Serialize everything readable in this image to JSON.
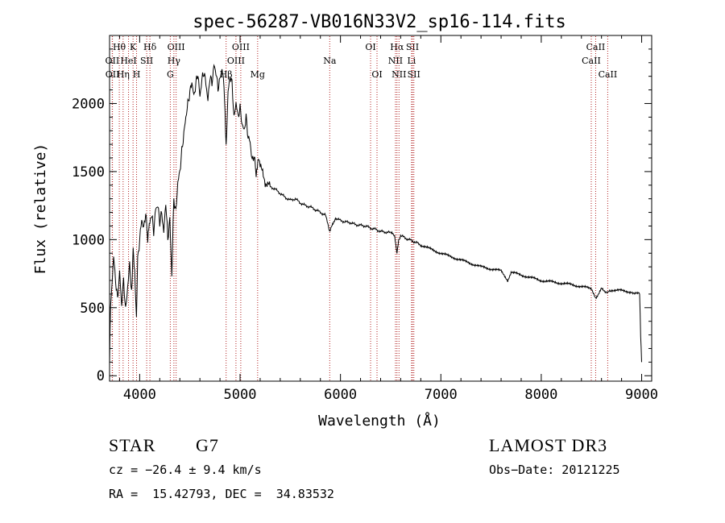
{
  "chart_data": {
    "type": "line",
    "title": "spec-56287-VB016N33V2_sp16-114.fits",
    "xlabel": "Wavelength (Å)",
    "ylabel": "Flux (relative)",
    "xlim": [
      3700,
      9100
    ],
    "ylim": [
      -40,
      2500
    ],
    "x_ticks": [
      4000,
      5000,
      6000,
      7000,
      8000,
      9000
    ],
    "x_tick_labels": [
      "4000",
      "5000",
      "6000",
      "7000",
      "8000",
      "9000"
    ],
    "y_ticks": [
      0,
      500,
      1000,
      1500,
      2000
    ],
    "y_tick_labels": [
      "0",
      "500",
      "1000",
      "1500",
      "2000"
    ],
    "series": [
      {
        "name": "spectrum",
        "color": "#000000",
        "x": [
          3700,
          3710,
          3720,
          3740,
          3760,
          3780,
          3800,
          3820,
          3840,
          3860,
          3880,
          3900,
          3920,
          3935,
          3950,
          3968,
          3980,
          4000,
          4020,
          4040,
          4060,
          4080,
          4101,
          4120,
          4140,
          4160,
          4180,
          4200,
          4220,
          4240,
          4260,
          4280,
          4300,
          4320,
          4340,
          4360,
          4380,
          4400,
          4420,
          4440,
          4460,
          4480,
          4500,
          4520,
          4540,
          4560,
          4580,
          4600,
          4620,
          4640,
          4660,
          4680,
          4700,
          4720,
          4740,
          4760,
          4780,
          4800,
          4820,
          4840,
          4861,
          4880,
          4900,
          4920,
          4940,
          4960,
          4980,
          5000,
          5020,
          5040,
          5060,
          5080,
          5100,
          5120,
          5140,
          5160,
          5183,
          5200,
          5250,
          5300,
          5350,
          5400,
          5450,
          5500,
          5550,
          5600,
          5650,
          5700,
          5750,
          5800,
          5850,
          5893,
          5950,
          6000,
          6050,
          6100,
          6150,
          6200,
          6250,
          6300,
          6350,
          6400,
          6450,
          6500,
          6540,
          6563,
          6580,
          6600,
          6650,
          6700,
          6750,
          6800,
          6900,
          7000,
          7100,
          7200,
          7300,
          7400,
          7500,
          7600,
          7665,
          7700,
          7800,
          7900,
          8000,
          8100,
          8200,
          8300,
          8400,
          8500,
          8542,
          8600,
          8662,
          8700,
          8800,
          8900,
          8980,
          8990,
          9000
        ],
        "values": [
          100,
          520,
          620,
          880,
          700,
          560,
          760,
          520,
          700,
          480,
          650,
          820,
          600,
          940,
          750,
          400,
          850,
          1000,
          1150,
          1080,
          1200,
          1000,
          1150,
          1180,
          1060,
          1230,
          1250,
          1130,
          1200,
          1050,
          1280,
          1000,
          1150,
          740,
          1300,
          1200,
          1420,
          1500,
          1650,
          1780,
          1900,
          2000,
          2080,
          2160,
          2050,
          2150,
          2220,
          2050,
          2180,
          2230,
          2150,
          2020,
          2200,
          2150,
          2280,
          2230,
          2110,
          2180,
          2260,
          2130,
          1700,
          2080,
          2200,
          2150,
          1890,
          2010,
          1900,
          1970,
          1850,
          1800,
          1900,
          1750,
          1720,
          1580,
          1620,
          1480,
          1580,
          1550,
          1420,
          1390,
          1370,
          1340,
          1310,
          1290,
          1300,
          1270,
          1250,
          1240,
          1220,
          1200,
          1180,
          1060,
          1160,
          1140,
          1130,
          1125,
          1110,
          1105,
          1100,
          1085,
          1075,
          1060,
          1055,
          1050,
          1030,
          900,
          990,
          1030,
          1010,
          995,
          980,
          960,
          930,
          900,
          875,
          850,
          825,
          800,
          785,
          770,
          700,
          760,
          740,
          720,
          700,
          690,
          680,
          670,
          655,
          640,
          570,
          640,
          610,
          630,
          625,
          615,
          600,
          300,
          100
        ]
      }
    ],
    "line_markers": [
      {
        "label": "Hθ",
        "x": 3797,
        "row": 1
      },
      {
        "label": "OII",
        "x": 3727,
        "row": 2
      },
      {
        "label": "OII",
        "x": 3729,
        "row": 3
      },
      {
        "label": "K",
        "x": 3934,
        "row": 1
      },
      {
        "label": "HeI",
        "x": 3889,
        "row": 2
      },
      {
        "label": "Hη",
        "x": 3835,
        "row": 3
      },
      {
        "label": "SII",
        "x": 4070,
        "row": 2
      },
      {
        "label": "H",
        "x": 3969,
        "row": 3
      },
      {
        "label": "Hδ",
        "x": 4102,
        "row": 1
      },
      {
        "label": "OIII",
        "x": 4363,
        "row": 1
      },
      {
        "label": "Hγ",
        "x": 4341,
        "row": 2
      },
      {
        "label": "G",
        "x": 4305,
        "row": 3
      },
      {
        "label": "Hβ",
        "x": 4861,
        "row": 3
      },
      {
        "label": "OIII",
        "x": 5007,
        "row": 1
      },
      {
        "label": "OIII",
        "x": 4959,
        "row": 2
      },
      {
        "label": "Mg",
        "x": 5175,
        "row": 3
      },
      {
        "label": "Na",
        "x": 5893,
        "row": 2
      },
      {
        "label": "OI",
        "x": 6300,
        "row": 1
      },
      {
        "label": "OI",
        "x": 6364,
        "row": 3
      },
      {
        "label": "Hα",
        "x": 6563,
        "row": 1
      },
      {
        "label": "NII",
        "x": 6548,
        "row": 2
      },
      {
        "label": "NII",
        "x": 6583,
        "row": 3
      },
      {
        "label": "SII",
        "x": 6717,
        "row": 1
      },
      {
        "label": "Li",
        "x": 6708,
        "row": 2
      },
      {
        "label": "SII",
        "x": 6731,
        "row": 3
      },
      {
        "label": "CaII",
        "x": 8542,
        "row": 1
      },
      {
        "label": "CaII",
        "x": 8498,
        "row": 2
      },
      {
        "label": "CaII",
        "x": 8662,
        "row": 3
      }
    ],
    "line_marker_color": "#b22222"
  },
  "info": {
    "class_label": "STAR",
    "subclass": "G7",
    "survey": "LAMOST DR3",
    "cz": "cz = −26.4 ± 9.4 km/s",
    "obs_date": "Obs−Date: 20121225",
    "radec": "RA =  15.42793, DEC =  34.83532"
  }
}
